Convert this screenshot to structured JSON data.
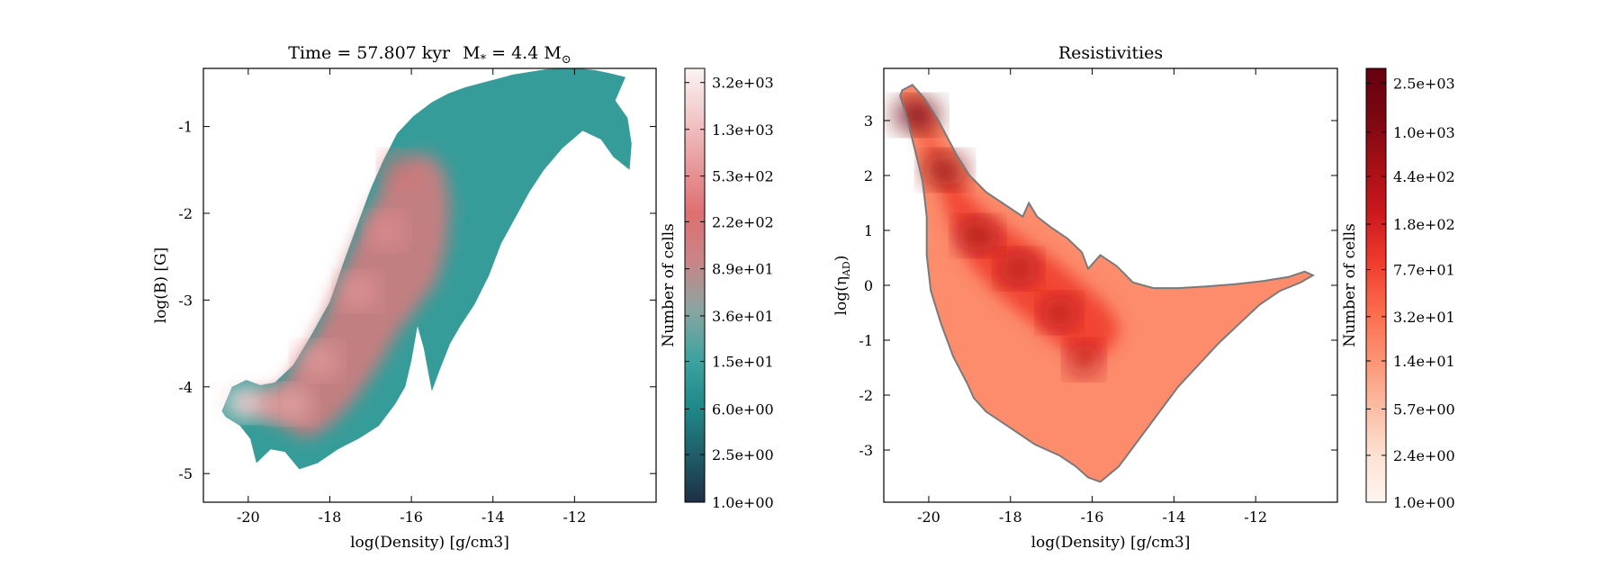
{
  "chart_data": [
    {
      "type": "heatmap",
      "title": "Time = 57.807 kyr    M* = 4.4 M⊙",
      "title_parts": {
        "prefix": "Time = 57.807 kyr",
        "mass_symbol": "M",
        "mass_subscript": "*",
        "mass_value": "= 4.4 M",
        "sun_symbol": "⊙"
      },
      "xlabel": "log(Density) [g/cm3]",
      "ylabel": "log(B) [G]",
      "xlim": [
        -21.1,
        -10.0
      ],
      "ylim": [
        -5.33,
        -0.33
      ],
      "x_ticks": [
        -20,
        -18,
        -16,
        -14,
        -12
      ],
      "x_tick_labels": [
        "-20",
        "-18",
        "-16",
        "-14",
        "-12"
      ],
      "y_ticks": [
        -5,
        -4,
        -3,
        -2,
        -1
      ],
      "y_tick_labels": [
        "-5",
        "-4",
        "-3",
        "-2",
        "-1"
      ],
      "colorbar": {
        "label": "Number of cells",
        "scale": "log",
        "min": 1.0,
        "max": 4200,
        "tick_labels": [
          "1.0e+00",
          "2.5e+00",
          "6.0e+00",
          "1.5e+01",
          "3.6e+01",
          "8.9e+01",
          "2.2e+02",
          "5.3e+02",
          "1.3e+03",
          "3.2e+03"
        ],
        "colors": [
          "#1d2f45",
          "#1f5e69",
          "#1f8a8a",
          "#40a3a0",
          "#8aa5a1",
          "#c98586",
          "#de6f71",
          "#e89a9c",
          "#f2c9ca",
          "#fbf3f3"
        ]
      },
      "region_outline": [
        [
          -20.65,
          -4.28
        ],
        [
          -20.4,
          -4.0
        ],
        [
          -20.05,
          -3.92
        ],
        [
          -19.7,
          -3.98
        ],
        [
          -19.35,
          -3.95
        ],
        [
          -18.9,
          -3.75
        ],
        [
          -18.45,
          -3.4
        ],
        [
          -18.0,
          -3.02
        ],
        [
          -17.65,
          -2.55
        ],
        [
          -17.3,
          -2.1
        ],
        [
          -17.0,
          -1.72
        ],
        [
          -16.7,
          -1.4
        ],
        [
          -16.35,
          -1.08
        ],
        [
          -15.95,
          -0.88
        ],
        [
          -15.5,
          -0.72
        ],
        [
          -15.1,
          -0.62
        ],
        [
          -14.7,
          -0.55
        ],
        [
          -14.3,
          -0.5
        ],
        [
          -13.9,
          -0.45
        ],
        [
          -13.5,
          -0.4
        ],
        [
          -13.1,
          -0.37
        ],
        [
          -12.7,
          -0.34
        ],
        [
          -12.3,
          -0.33
        ],
        [
          -11.9,
          -0.33
        ],
        [
          -11.5,
          -0.35
        ],
        [
          -11.1,
          -0.39
        ],
        [
          -10.75,
          -0.43
        ],
        [
          -11.0,
          -0.7
        ],
        [
          -10.7,
          -0.9
        ],
        [
          -10.6,
          -1.2
        ],
        [
          -10.65,
          -1.5
        ],
        [
          -11.05,
          -1.35
        ],
        [
          -11.35,
          -1.15
        ],
        [
          -11.8,
          -1.05
        ],
        [
          -12.3,
          -1.25
        ],
        [
          -12.75,
          -1.5
        ],
        [
          -13.1,
          -1.75
        ],
        [
          -13.45,
          -2.05
        ],
        [
          -13.8,
          -2.35
        ],
        [
          -14.1,
          -2.72
        ],
        [
          -14.45,
          -3.05
        ],
        [
          -14.8,
          -3.3
        ],
        [
          -15.05,
          -3.5
        ],
        [
          -15.3,
          -3.8
        ],
        [
          -15.5,
          -4.05
        ],
        [
          -15.7,
          -3.55
        ],
        [
          -15.85,
          -3.3
        ],
        [
          -16.0,
          -3.7
        ],
        [
          -16.15,
          -4.0
        ],
        [
          -16.4,
          -4.2
        ],
        [
          -16.8,
          -4.45
        ],
        [
          -17.3,
          -4.6
        ],
        [
          -17.8,
          -4.72
        ],
        [
          -18.3,
          -4.88
        ],
        [
          -18.75,
          -4.95
        ],
        [
          -19.1,
          -4.75
        ],
        [
          -19.45,
          -4.72
        ],
        [
          -19.8,
          -4.88
        ],
        [
          -19.95,
          -4.6
        ],
        [
          -20.2,
          -4.45
        ],
        [
          -20.55,
          -4.35
        ]
      ],
      "inner_outline": [
        [
          -20.35,
          -4.2
        ],
        [
          -20.0,
          -4.05
        ],
        [
          -19.6,
          -4.08
        ],
        [
          -19.1,
          -3.95
        ],
        [
          -18.6,
          -3.6
        ],
        [
          -18.15,
          -3.2
        ],
        [
          -17.75,
          -2.75
        ],
        [
          -17.35,
          -2.3
        ],
        [
          -17.0,
          -1.95
        ],
        [
          -16.6,
          -1.6
        ],
        [
          -16.1,
          -1.4
        ],
        [
          -15.6,
          -1.3
        ],
        [
          -15.2,
          -1.5
        ],
        [
          -15.05,
          -1.9
        ],
        [
          -15.15,
          -2.4
        ],
        [
          -15.4,
          -2.8
        ],
        [
          -15.8,
          -3.05
        ],
        [
          -16.3,
          -3.35
        ],
        [
          -16.8,
          -3.75
        ],
        [
          -17.4,
          -4.15
        ],
        [
          -18.0,
          -4.45
        ],
        [
          -18.6,
          -4.6
        ],
        [
          -19.1,
          -4.45
        ],
        [
          -19.6,
          -4.35
        ],
        [
          -20.0,
          -4.3
        ]
      ],
      "hotspots": [
        {
          "x": -20.1,
          "y": -4.18,
          "count": 3200
        },
        {
          "x": -19.0,
          "y": -4.2,
          "count": 900
        },
        {
          "x": -18.3,
          "y": -3.7,
          "count": 700
        },
        {
          "x": -17.3,
          "y": -2.9,
          "count": 600
        },
        {
          "x": -16.6,
          "y": -2.2,
          "count": 500
        },
        {
          "x": -16.3,
          "y": -1.5,
          "count": 250
        }
      ]
    },
    {
      "type": "heatmap",
      "title": "Resistivities",
      "xlabel": "log(Density) [g/cm3]",
      "ylabel": "log(ηAD)",
      "ylabel_parts": {
        "prefix": "log(",
        "symbol": "η",
        "subscript": "AD",
        "suffix": ")"
      },
      "xlim": [
        -21.1,
        -10.0
      ],
      "ylim": [
        -3.95,
        3.95
      ],
      "x_ticks": [
        -20,
        -18,
        -16,
        -14,
        -12
      ],
      "x_tick_labels": [
        "-20",
        "-18",
        "-16",
        "-14",
        "-12"
      ],
      "y_ticks": [
        -3,
        -2,
        -1,
        0,
        1,
        2,
        3
      ],
      "y_tick_labels": [
        "-3",
        "-2",
        "-1",
        "0",
        "1",
        "2",
        "3"
      ],
      "colorbar": {
        "label": "Number of cells",
        "scale": "log",
        "min": 1.0,
        "max": 3300,
        "tick_labels": [
          "1.0e+00",
          "2.4e+00",
          "5.7e+00",
          "1.4e+01",
          "3.2e+01",
          "7.7e+01",
          "1.8e+02",
          "4.4e+02",
          "1.0e+03",
          "2.5e+03"
        ],
        "colors": [
          "#fff5f0",
          "#fde0d2",
          "#fcbba1",
          "#fc9272",
          "#fb6a4a",
          "#ef3b2c",
          "#cb181d",
          "#a50f15",
          "#7a0711",
          "#67000d"
        ]
      },
      "region_outline": [
        [
          -20.65,
          3.55
        ],
        [
          -20.4,
          3.65
        ],
        [
          -20.1,
          3.4
        ],
        [
          -19.8,
          3.05
        ],
        [
          -19.55,
          2.7
        ],
        [
          -19.3,
          2.35
        ],
        [
          -19.0,
          2.0
        ],
        [
          -18.6,
          1.7
        ],
        [
          -18.1,
          1.45
        ],
        [
          -17.7,
          1.25
        ],
        [
          -17.55,
          1.5
        ],
        [
          -17.35,
          1.25
        ],
        [
          -17.0,
          1.05
        ],
        [
          -16.6,
          0.85
        ],
        [
          -16.25,
          0.6
        ],
        [
          -16.1,
          0.3
        ],
        [
          -15.8,
          0.55
        ],
        [
          -15.4,
          0.35
        ],
        [
          -15.0,
          0.05
        ],
        [
          -14.5,
          -0.05
        ],
        [
          -13.9,
          -0.05
        ],
        [
          -13.2,
          -0.02
        ],
        [
          -12.5,
          0.02
        ],
        [
          -11.8,
          0.08
        ],
        [
          -11.2,
          0.15
        ],
        [
          -10.8,
          0.25
        ],
        [
          -10.6,
          0.18
        ],
        [
          -10.9,
          0.05
        ],
        [
          -11.4,
          -0.1
        ],
        [
          -11.9,
          -0.35
        ],
        [
          -12.4,
          -0.7
        ],
        [
          -12.9,
          -1.05
        ],
        [
          -13.4,
          -1.45
        ],
        [
          -13.9,
          -1.85
        ],
        [
          -14.4,
          -2.35
        ],
        [
          -14.9,
          -2.85
        ],
        [
          -15.35,
          -3.3
        ],
        [
          -15.8,
          -3.58
        ],
        [
          -16.1,
          -3.5
        ],
        [
          -16.4,
          -3.3
        ],
        [
          -16.8,
          -3.1
        ],
        [
          -17.4,
          -2.9
        ],
        [
          -18.0,
          -2.6
        ],
        [
          -18.6,
          -2.3
        ],
        [
          -18.9,
          -2.05
        ],
        [
          -19.05,
          -1.8
        ],
        [
          -19.4,
          -1.3
        ],
        [
          -19.7,
          -0.7
        ],
        [
          -19.95,
          -0.1
        ],
        [
          -20.05,
          0.55
        ],
        [
          -20.05,
          1.25
        ],
        [
          -20.15,
          1.9
        ],
        [
          -20.35,
          2.5
        ],
        [
          -20.55,
          3.1
        ],
        [
          -20.7,
          3.45
        ]
      ],
      "inner_outline": [
        [
          -20.5,
          3.5
        ],
        [
          -20.2,
          3.2
        ],
        [
          -19.9,
          2.7
        ],
        [
          -19.5,
          2.1
        ],
        [
          -19.0,
          1.6
        ],
        [
          -18.4,
          1.2
        ],
        [
          -17.8,
          0.9
        ],
        [
          -17.0,
          0.5
        ],
        [
          -16.2,
          0.0
        ],
        [
          -15.6,
          -0.4
        ],
        [
          -15.3,
          -0.8
        ],
        [
          -15.6,
          -1.2
        ],
        [
          -16.2,
          -1.4
        ],
        [
          -16.8,
          -1.1
        ],
        [
          -17.6,
          -0.6
        ],
        [
          -18.4,
          -0.1
        ],
        [
          -19.0,
          0.4
        ],
        [
          -19.4,
          1.0
        ],
        [
          -19.7,
          1.7
        ],
        [
          -20.0,
          2.4
        ],
        [
          -20.3,
          3.0
        ]
      ],
      "hotspots": [
        {
          "x": -20.3,
          "y": 3.1,
          "count": 2500
        },
        {
          "x": -19.6,
          "y": 2.1,
          "count": 900
        },
        {
          "x": -18.8,
          "y": 0.9,
          "count": 600
        },
        {
          "x": -17.8,
          "y": 0.3,
          "count": 500
        },
        {
          "x": -16.8,
          "y": -0.5,
          "count": 400
        },
        {
          "x": -16.2,
          "y": -1.35,
          "count": 350
        }
      ]
    }
  ]
}
